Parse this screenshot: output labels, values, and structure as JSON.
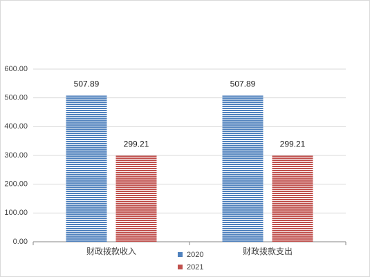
{
  "chart_data": {
    "type": "bar",
    "categories": [
      "财政拨款收入",
      "财政拨款支出"
    ],
    "series": [
      {
        "name": "2020",
        "color": "#4f81bd",
        "values": [
          507.89,
          507.89
        ]
      },
      {
        "name": "2021",
        "color": "#c0504d",
        "values": [
          299.21,
          299.21
        ]
      }
    ],
    "ylim": [
      0,
      600
    ],
    "yticks": [
      {
        "value": 0,
        "label": "0.00"
      },
      {
        "value": 100,
        "label": "100.00"
      },
      {
        "value": 200,
        "label": "200.00"
      },
      {
        "value": 300,
        "label": "300.00"
      },
      {
        "value": 400,
        "label": "400.00"
      },
      {
        "value": 500,
        "label": "500.00"
      },
      {
        "value": 600,
        "label": "600.00"
      }
    ],
    "grid": true,
    "legend": "bottom"
  }
}
